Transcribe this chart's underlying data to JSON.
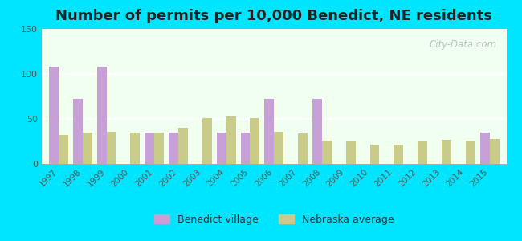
{
  "title": "Number of permits per 10,000 Benedict, NE residents",
  "years": [
    1997,
    1998,
    1999,
    2000,
    2001,
    2002,
    2003,
    2004,
    2005,
    2006,
    2007,
    2008,
    2009,
    2010,
    2011,
    2012,
    2013,
    2014,
    2015
  ],
  "benedict": [
    108,
    72,
    108,
    0,
    35,
    35,
    0,
    35,
    35,
    72,
    0,
    72,
    0,
    0,
    0,
    0,
    0,
    0,
    35
  ],
  "nebraska": [
    32,
    35,
    36,
    35,
    35,
    40,
    51,
    53,
    51,
    36,
    34,
    26,
    25,
    21,
    21,
    25,
    27,
    26,
    28
  ],
  "benedict_color": "#c8a0d8",
  "nebraska_color": "#c8cc88",
  "bg_outer": "#00e5ff",
  "bg_plot_top": "#f0fff0",
  "bg_plot_bottom": "#e8ffe8",
  "title_fontsize": 13,
  "ylim": [
    0,
    150
  ],
  "yticks": [
    0,
    50,
    100,
    150
  ],
  "legend_labels": [
    "Benedict village",
    "Nebraska average"
  ],
  "bar_width": 0.4,
  "watermark": "City-Data.com"
}
